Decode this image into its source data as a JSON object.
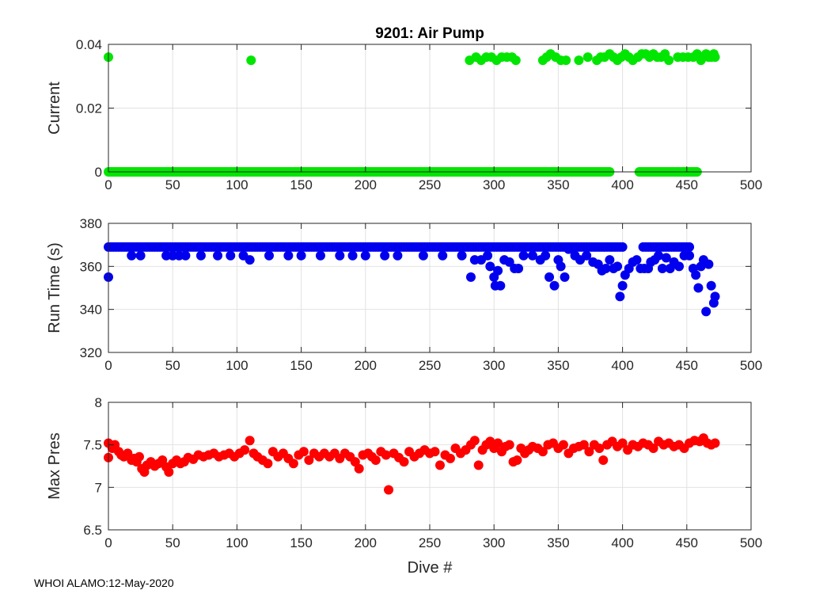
{
  "footer_text": "WHOI ALAMO:12-May-2020",
  "chart_data": [
    {
      "type": "scatter",
      "title": "9201: Air Pump",
      "xlabel": "",
      "ylabel": "Current",
      "xlim": [
        0,
        500
      ],
      "ylim": [
        0,
        0.04
      ],
      "xticks": [
        0,
        50,
        100,
        150,
        200,
        250,
        300,
        350,
        400,
        450,
        500
      ],
      "yticks": [
        0,
        0.02,
        0.04
      ],
      "yticklabels": [
        "0",
        "0.02",
        "0.04"
      ],
      "grid": true,
      "color": "#00e600",
      "points": [
        [
          0,
          0.036
        ],
        [
          111,
          0.035
        ],
        [
          281,
          0.035
        ],
        [
          286,
          0.036
        ],
        [
          290,
          0.035
        ],
        [
          294,
          0.036
        ],
        [
          298,
          0.036
        ],
        [
          302,
          0.035
        ],
        [
          306,
          0.036
        ],
        [
          310,
          0.036
        ],
        [
          314,
          0.036
        ],
        [
          317,
          0.035
        ],
        [
          338,
          0.035
        ],
        [
          341,
          0.036
        ],
        [
          344,
          0.037
        ],
        [
          348,
          0.036
        ],
        [
          352,
          0.035
        ],
        [
          356,
          0.035
        ],
        [
          366,
          0.035
        ],
        [
          373,
          0.036
        ],
        [
          380,
          0.035
        ],
        [
          383,
          0.036
        ],
        [
          386,
          0.036
        ],
        [
          390,
          0.037
        ],
        [
          393,
          0.036
        ],
        [
          396,
          0.035
        ],
        [
          399,
          0.036
        ],
        [
          402,
          0.037
        ],
        [
          405,
          0.036
        ],
        [
          408,
          0.035
        ],
        [
          412,
          0.036
        ],
        [
          415,
          0.037
        ],
        [
          418,
          0.037
        ],
        [
          421,
          0.036
        ],
        [
          424,
          0.037
        ],
        [
          427,
          0.036
        ],
        [
          430,
          0.036
        ],
        [
          433,
          0.037
        ],
        [
          436,
          0.035
        ],
        [
          443,
          0.036
        ],
        [
          447,
          0.036
        ],
        [
          451,
          0.036
        ],
        [
          455,
          0.036
        ],
        [
          458,
          0.037
        ],
        [
          461,
          0.035
        ],
        [
          463,
          0.036
        ],
        [
          465,
          0.037
        ],
        [
          467,
          0.036
        ],
        [
          469,
          0.036
        ],
        [
          471,
          0.037
        ],
        [
          472,
          0.036
        ]
      ],
      "zero_ranges": [
        [
          0,
          390
        ],
        [
          413,
          458
        ]
      ],
      "zero_value": 0
    },
    {
      "type": "scatter",
      "title": "",
      "xlabel": "",
      "ylabel": "Run Time (s)",
      "xlim": [
        0,
        500
      ],
      "ylim": [
        320,
        380
      ],
      "xticks": [
        0,
        50,
        100,
        150,
        200,
        250,
        300,
        350,
        400,
        450,
        500
      ],
      "yticks": [
        320,
        340,
        360,
        380
      ],
      "yticklabels": [
        "320",
        "340",
        "360",
        "380"
      ],
      "grid": true,
      "color": "#0000ee",
      "points": [
        [
          0,
          355
        ],
        [
          18,
          365
        ],
        [
          25,
          365
        ],
        [
          45,
          365
        ],
        [
          50,
          365
        ],
        [
          55,
          365
        ],
        [
          60,
          365
        ],
        [
          72,
          365
        ],
        [
          85,
          365
        ],
        [
          95,
          365
        ],
        [
          105,
          365
        ],
        [
          110,
          363
        ],
        [
          125,
          365
        ],
        [
          140,
          365
        ],
        [
          150,
          365
        ],
        [
          165,
          365
        ],
        [
          180,
          365
        ],
        [
          190,
          365
        ],
        [
          200,
          365
        ],
        [
          215,
          365
        ],
        [
          225,
          365
        ],
        [
          245,
          365
        ],
        [
          260,
          365
        ],
        [
          275,
          365
        ],
        [
          282,
          355
        ],
        [
          285,
          363
        ],
        [
          290,
          363
        ],
        [
          295,
          365
        ],
        [
          297,
          360
        ],
        [
          300,
          355
        ],
        [
          301,
          351
        ],
        [
          303,
          358
        ],
        [
          305,
          351
        ],
        [
          308,
          363
        ],
        [
          312,
          362
        ],
        [
          316,
          359
        ],
        [
          319,
          359
        ],
        [
          323,
          365
        ],
        [
          330,
          365
        ],
        [
          336,
          363
        ],
        [
          340,
          365
        ],
        [
          343,
          355
        ],
        [
          347,
          351
        ],
        [
          350,
          363
        ],
        [
          352,
          360
        ],
        [
          355,
          355
        ],
        [
          358,
          368
        ],
        [
          363,
          365
        ],
        [
          367,
          363
        ],
        [
          372,
          365
        ],
        [
          377,
          362
        ],
        [
          381,
          361
        ],
        [
          384,
          358
        ],
        [
          387,
          359
        ],
        [
          390,
          363
        ],
        [
          393,
          359
        ],
        [
          396,
          360
        ],
        [
          398,
          346
        ],
        [
          400,
          351
        ],
        [
          402,
          356
        ],
        [
          405,
          359
        ],
        [
          408,
          362
        ],
        [
          411,
          363
        ],
        [
          414,
          359
        ],
        [
          417,
          359
        ],
        [
          420,
          359
        ],
        [
          422,
          362
        ],
        [
          425,
          363
        ],
        [
          428,
          365
        ],
        [
          431,
          359
        ],
        [
          434,
          364
        ],
        [
          437,
          359
        ],
        [
          440,
          362
        ],
        [
          444,
          360
        ],
        [
          448,
          365
        ],
        [
          452,
          365
        ],
        [
          455,
          359
        ],
        [
          457,
          356
        ],
        [
          459,
          350
        ],
        [
          461,
          360
        ],
        [
          463,
          363
        ],
        [
          465,
          339
        ],
        [
          467,
          361
        ],
        [
          469,
          351
        ],
        [
          471,
          343
        ],
        [
          472,
          346
        ]
      ],
      "top_ranges": [
        [
          0,
          400
        ],
        [
          416,
          452
        ]
      ],
      "top_value": 369
    },
    {
      "type": "scatter",
      "title": "",
      "xlabel": "Dive #",
      "ylabel": "Max Pres",
      "xlim": [
        0,
        500
      ],
      "ylim": [
        6.5,
        8
      ],
      "xticks": [
        0,
        50,
        100,
        150,
        200,
        250,
        300,
        350,
        400,
        450,
        500
      ],
      "yticks": [
        6.5,
        7,
        7.5,
        8
      ],
      "yticklabels": [
        "6.5",
        "7",
        "7.5",
        "8"
      ],
      "grid": true,
      "color": "#ff0000",
      "points": [
        [
          0,
          7.35
        ],
        [
          0,
          7.52
        ],
        [
          3,
          7.46
        ],
        [
          5,
          7.5
        ],
        [
          8,
          7.42
        ],
        [
          10,
          7.38
        ],
        [
          12,
          7.36
        ],
        [
          15,
          7.4
        ],
        [
          18,
          7.32
        ],
        [
          20,
          7.34
        ],
        [
          22,
          7.3
        ],
        [
          24,
          7.36
        ],
        [
          26,
          7.22
        ],
        [
          28,
          7.18
        ],
        [
          30,
          7.26
        ],
        [
          33,
          7.3
        ],
        [
          36,
          7.25
        ],
        [
          39,
          7.28
        ],
        [
          42,
          7.32
        ],
        [
          45,
          7.24
        ],
        [
          47,
          7.18
        ],
        [
          50,
          7.28
        ],
        [
          53,
          7.32
        ],
        [
          56,
          7.28
        ],
        [
          59,
          7.3
        ],
        [
          62,
          7.35
        ],
        [
          66,
          7.33
        ],
        [
          70,
          7.38
        ],
        [
          74,
          7.36
        ],
        [
          78,
          7.38
        ],
        [
          82,
          7.4
        ],
        [
          86,
          7.36
        ],
        [
          90,
          7.38
        ],
        [
          94,
          7.4
        ],
        [
          98,
          7.36
        ],
        [
          102,
          7.4
        ],
        [
          106,
          7.44
        ],
        [
          110,
          7.55
        ],
        [
          113,
          7.4
        ],
        [
          116,
          7.36
        ],
        [
          120,
          7.32
        ],
        [
          124,
          7.28
        ],
        [
          128,
          7.42
        ],
        [
          132,
          7.36
        ],
        [
          136,
          7.4
        ],
        [
          140,
          7.34
        ],
        [
          144,
          7.28
        ],
        [
          148,
          7.38
        ],
        [
          152,
          7.42
        ],
        [
          156,
          7.32
        ],
        [
          160,
          7.4
        ],
        [
          164,
          7.36
        ],
        [
          168,
          7.4
        ],
        [
          172,
          7.36
        ],
        [
          176,
          7.4
        ],
        [
          180,
          7.34
        ],
        [
          184,
          7.4
        ],
        [
          188,
          7.36
        ],
        [
          192,
          7.3
        ],
        [
          195,
          7.22
        ],
        [
          198,
          7.38
        ],
        [
          202,
          7.4
        ],
        [
          205,
          7.36
        ],
        [
          208,
          7.32
        ],
        [
          212,
          7.42
        ],
        [
          216,
          7.38
        ],
        [
          218,
          6.97
        ],
        [
          222,
          7.4
        ],
        [
          226,
          7.35
        ],
        [
          230,
          7.3
        ],
        [
          234,
          7.42
        ],
        [
          238,
          7.36
        ],
        [
          242,
          7.4
        ],
        [
          246,
          7.44
        ],
        [
          250,
          7.4
        ],
        [
          254,
          7.42
        ],
        [
          258,
          7.26
        ],
        [
          262,
          7.38
        ],
        [
          266,
          7.34
        ],
        [
          270,
          7.46
        ],
        [
          274,
          7.4
        ],
        [
          278,
          7.44
        ],
        [
          282,
          7.5
        ],
        [
          285,
          7.55
        ],
        [
          288,
          7.26
        ],
        [
          291,
          7.44
        ],
        [
          294,
          7.5
        ],
        [
          297,
          7.54
        ],
        [
          300,
          7.46
        ],
        [
          303,
          7.52
        ],
        [
          306,
          7.42
        ],
        [
          309,
          7.48
        ],
        [
          312,
          7.5
        ],
        [
          315,
          7.3
        ],
        [
          318,
          7.32
        ],
        [
          321,
          7.46
        ],
        [
          324,
          7.4
        ],
        [
          327,
          7.44
        ],
        [
          330,
          7.48
        ],
        [
          334,
          7.46
        ],
        [
          338,
          7.42
        ],
        [
          342,
          7.5
        ],
        [
          346,
          7.52
        ],
        [
          350,
          7.46
        ],
        [
          354,
          7.5
        ],
        [
          358,
          7.4
        ],
        [
          362,
          7.46
        ],
        [
          366,
          7.48
        ],
        [
          370,
          7.5
        ],
        [
          374,
          7.42
        ],
        [
          378,
          7.5
        ],
        [
          382,
          7.46
        ],
        [
          385,
          7.32
        ],
        [
          388,
          7.5
        ],
        [
          392,
          7.54
        ],
        [
          396,
          7.48
        ],
        [
          400,
          7.52
        ],
        [
          404,
          7.44
        ],
        [
          408,
          7.5
        ],
        [
          412,
          7.48
        ],
        [
          416,
          7.52
        ],
        [
          420,
          7.5
        ],
        [
          424,
          7.46
        ],
        [
          428,
          7.54
        ],
        [
          432,
          7.5
        ],
        [
          436,
          7.52
        ],
        [
          440,
          7.48
        ],
        [
          444,
          7.5
        ],
        [
          448,
          7.46
        ],
        [
          452,
          7.52
        ],
        [
          456,
          7.55
        ],
        [
          460,
          7.54
        ],
        [
          463,
          7.58
        ],
        [
          466,
          7.52
        ],
        [
          469,
          7.5
        ],
        [
          472,
          7.52
        ]
      ]
    }
  ]
}
